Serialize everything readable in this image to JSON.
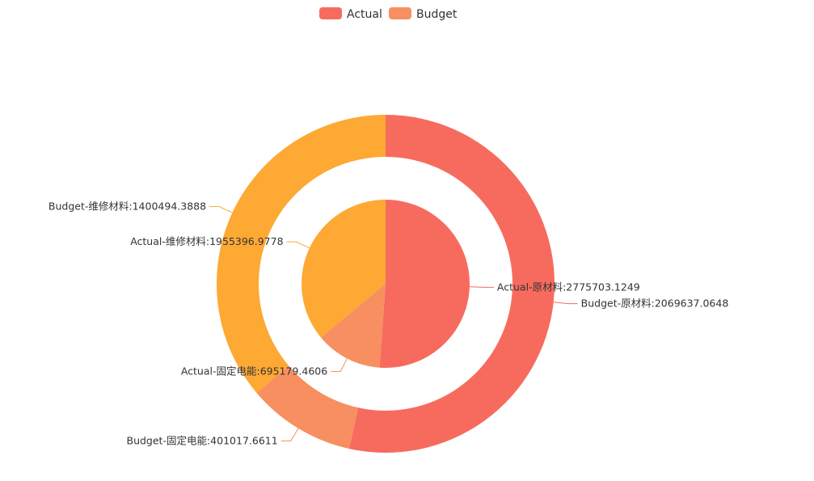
{
  "chart_data": {
    "type": "pie",
    "subtype": "nested-donut",
    "legend": {
      "placement": "top-center",
      "items": [
        {
          "name": "Actual",
          "color": "#f76b5e"
        },
        {
          "name": "Budget",
          "color": "#f78f61"
        }
      ]
    },
    "categories": [
      "原材料",
      "固定电能",
      "维修材料"
    ],
    "category_colors": [
      "#f76b5e",
      "#f78f61",
      "#fda934"
    ],
    "series": [
      {
        "name": "Actual",
        "ring": "inner",
        "values": [
          2775703.1249,
          695179.4606,
          1955396.9778
        ],
        "labels": [
          "Actual-原材料:2775703.1249",
          "Actual-固定电能:695179.4606",
          "Actual-维修材料:1955396.9778"
        ]
      },
      {
        "name": "Budget",
        "ring": "outer",
        "values": [
          2069637.0648,
          401017.6611,
          1400494.3888
        ],
        "labels": [
          "Budget-原材料:2069637.0648",
          "Budget-固定电能:401017.6611",
          "Budget-维修材料:1400494.3888"
        ]
      }
    ]
  }
}
